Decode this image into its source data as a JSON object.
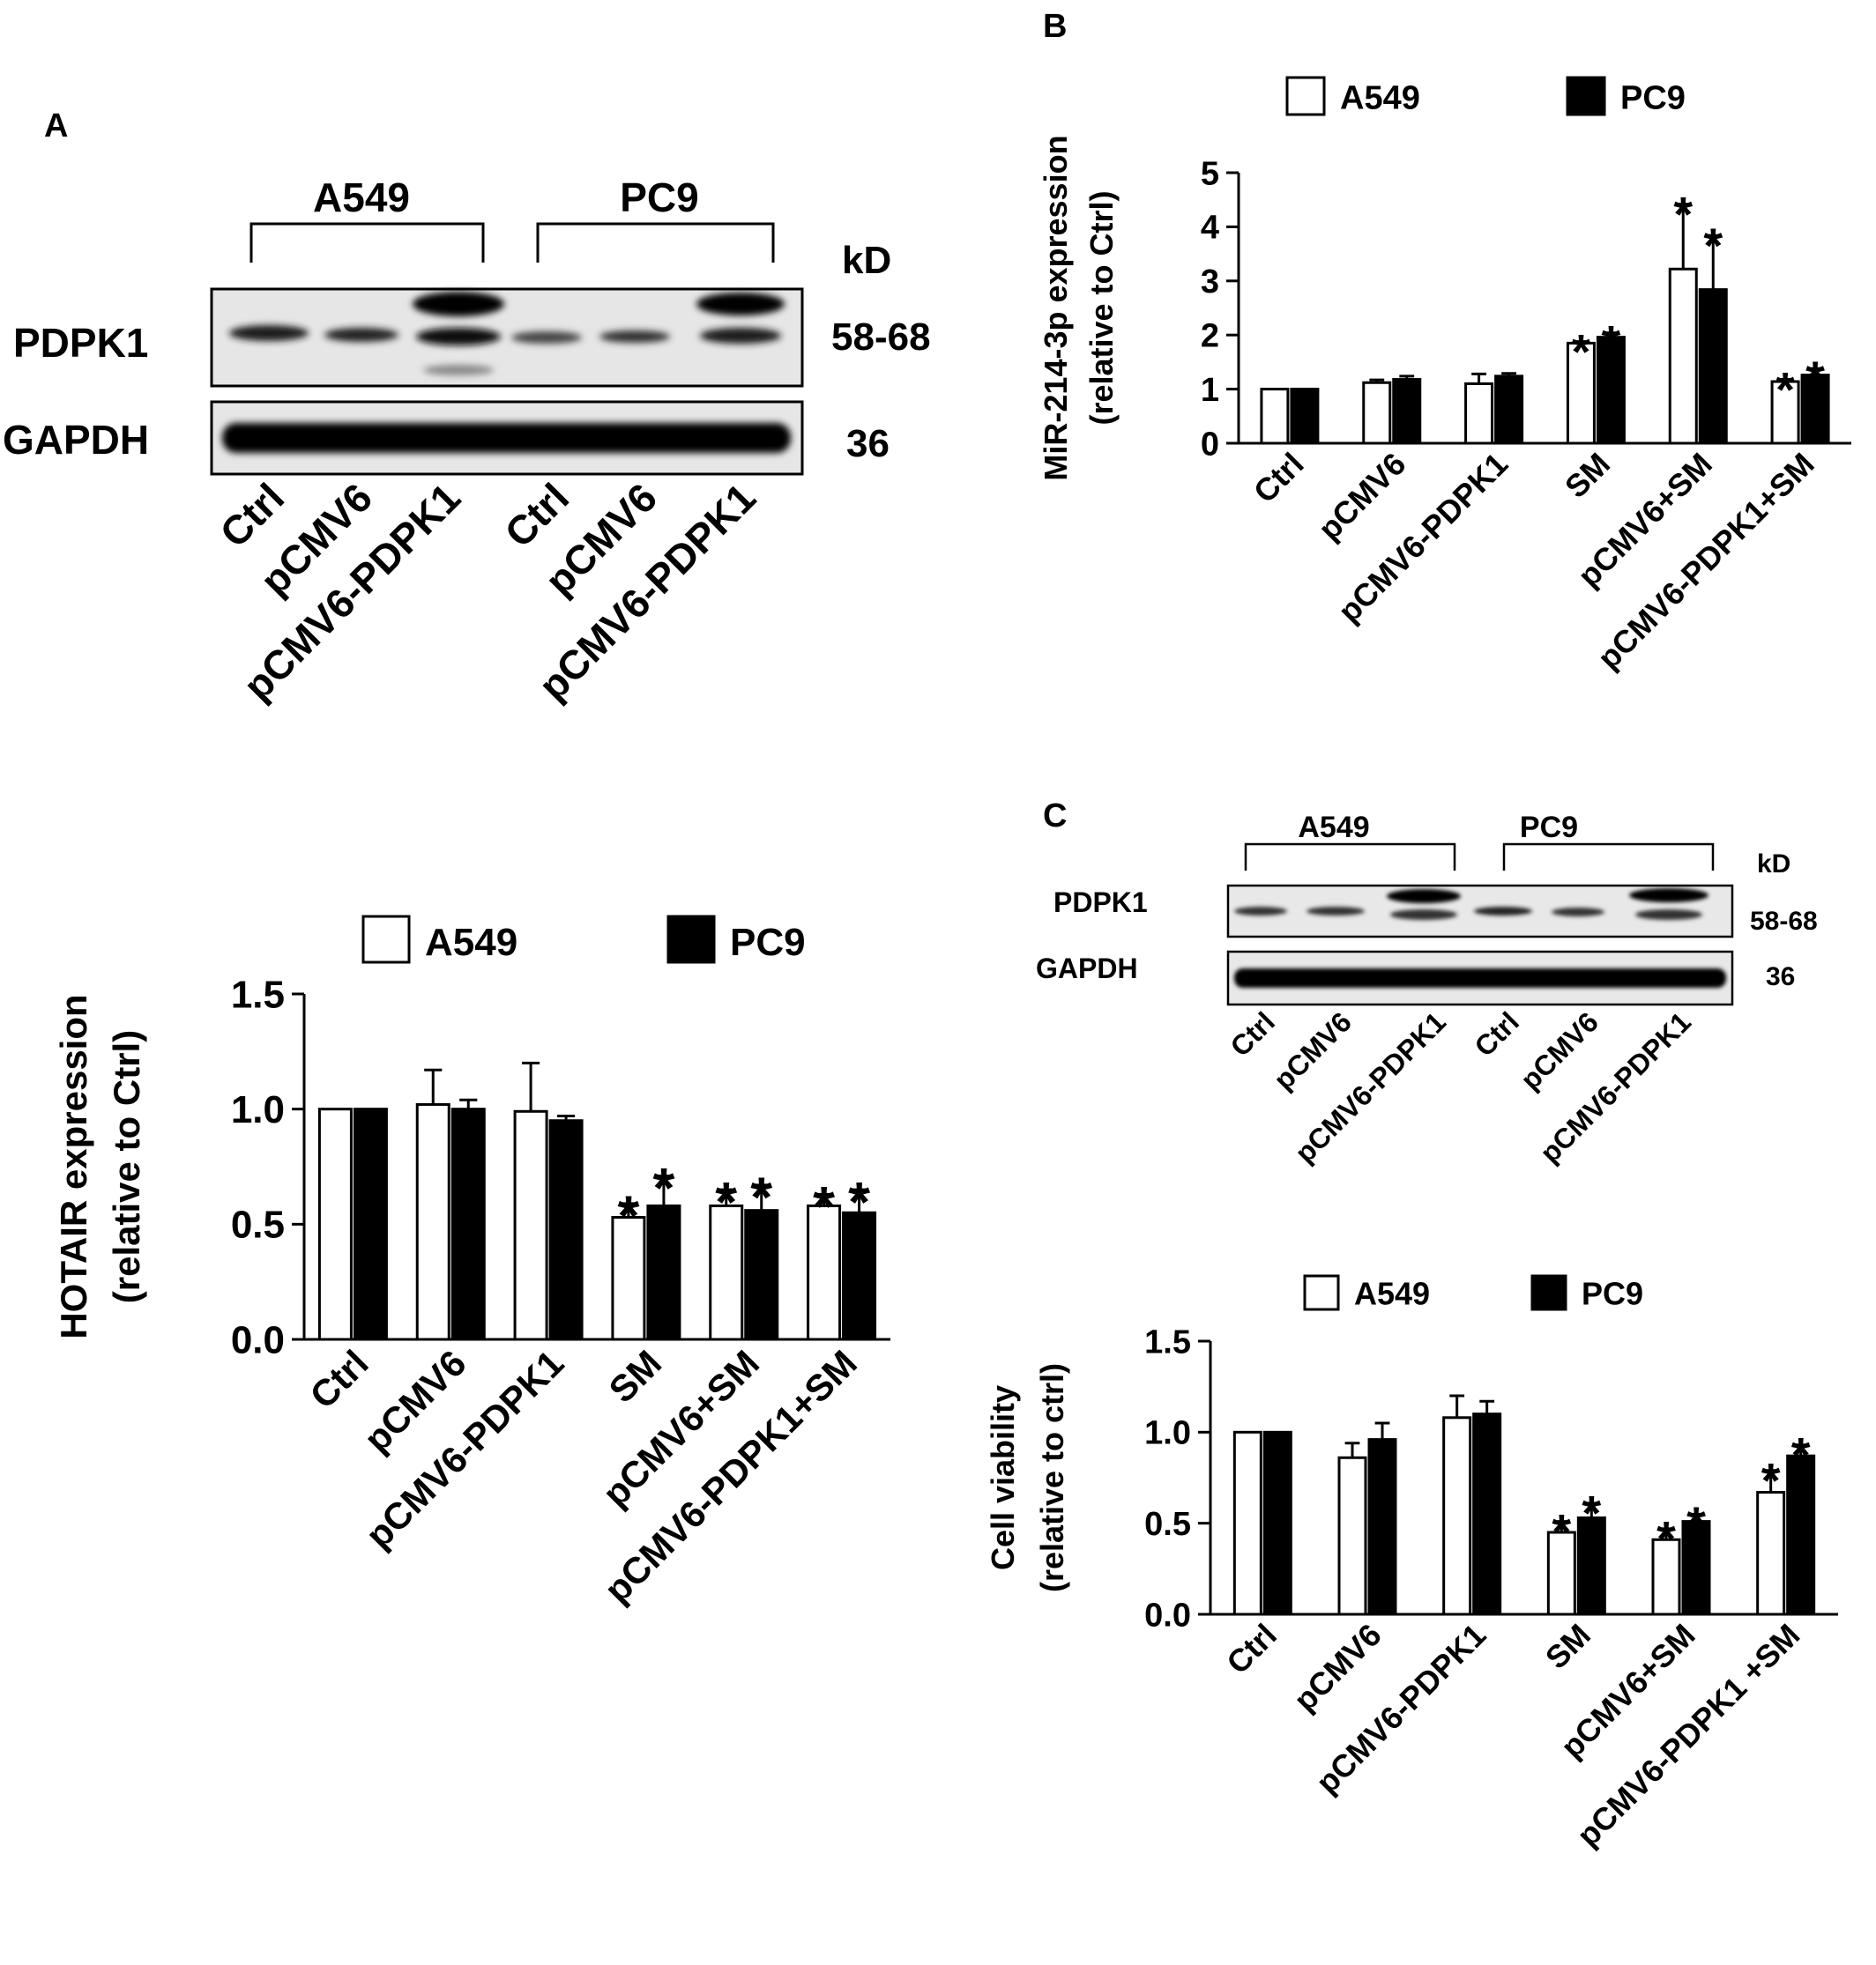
{
  "panels": {
    "a": "A",
    "b": "B",
    "c": "C"
  },
  "blot_a": {
    "groups": [
      "A549",
      "PC9"
    ],
    "unit_header": "kD",
    "proteins": [
      {
        "name": "PDPK1",
        "kd": "58-68"
      },
      {
        "name": "GAPDH",
        "kd": "36"
      }
    ],
    "lanes": [
      "Ctrl",
      "pCMV6",
      "pCMV6-PDPK1",
      "Ctrl",
      "pCMV6",
      "pCMV6-PDPK1"
    ]
  },
  "blot_c": {
    "groups": [
      "A549",
      "PC9"
    ],
    "unit_header": "kD",
    "proteins": [
      {
        "name": "PDPK1",
        "kd": "58-68"
      },
      {
        "name": "GAPDH",
        "kd": "36"
      }
    ],
    "lanes": [
      "Ctrl",
      "pCMV6",
      "pCMV6-PDPK1",
      "Ctrl",
      "pCMV6",
      "pCMV6-PDPK1"
    ]
  },
  "colors": {
    "A549": "#ffffff",
    "PC9": "#000000"
  },
  "chart_data": [
    {
      "id": "hotair",
      "type": "bar",
      "ylabel": [
        "HOTAIR expression",
        "(relative to Ctrl)"
      ],
      "ylim": [
        0,
        1.5
      ],
      "yticks": [
        "0.0",
        "0.5",
        "1.0",
        "1.5"
      ],
      "categories": [
        "Ctrl",
        "pCMV6",
        "pCMV6-PDPK1",
        "SM",
        "pCMV6+SM",
        "pCMV6-PDPK1+SM"
      ],
      "legend_position": "top",
      "grid": false,
      "series": [
        {
          "name": "A549",
          "values": [
            1.0,
            1.02,
            0.99,
            0.53,
            0.58,
            0.58
          ],
          "errors": [
            0,
            0.15,
            0.21,
            0.06,
            0.07,
            0.05
          ],
          "stars": [
            "",
            "",
            "",
            "*",
            "*",
            "*"
          ]
        },
        {
          "name": "PC9",
          "values": [
            1.0,
            1.0,
            0.95,
            0.58,
            0.56,
            0.55
          ],
          "errors": [
            0,
            0.04,
            0.02,
            0.13,
            0.11,
            0.1
          ],
          "stars": [
            "",
            "",
            "",
            "*",
            "*",
            "*"
          ]
        }
      ]
    },
    {
      "id": "mir214",
      "type": "bar",
      "ylabel": [
        "MiR-214-3p expression",
        "(relative to Ctrl)"
      ],
      "ylim": [
        0,
        5
      ],
      "yticks": [
        "0",
        "1",
        "2",
        "3",
        "4",
        "5"
      ],
      "categories": [
        "Ctrl",
        "pCMV6",
        "pCMV6-PDPK1",
        "SM",
        "pCMV6+SM",
        "pCMV6-PDPK1+SM"
      ],
      "legend_position": "top",
      "grid": false,
      "series": [
        {
          "name": "A549",
          "values": [
            1.0,
            1.12,
            1.1,
            1.85,
            3.22,
            1.14
          ],
          "errors": [
            0,
            0.05,
            0.18,
            0.03,
            1.2,
            0.04
          ],
          "stars": [
            "",
            "",
            "",
            "*",
            "*",
            "*"
          ]
        },
        {
          "name": "PC9",
          "values": [
            1.0,
            1.18,
            1.24,
            1.96,
            2.84,
            1.26
          ],
          "errors": [
            0,
            0.06,
            0.05,
            0.08,
            1.0,
            0.12
          ],
          "stars": [
            "",
            "",
            "",
            "*",
            "*",
            "*"
          ]
        }
      ]
    },
    {
      "id": "viability",
      "type": "bar",
      "ylabel": [
        "Cell viability",
        "(relative to ctrl)"
      ],
      "ylim": [
        0,
        1.5
      ],
      "yticks": [
        "0.0",
        "0.5",
        "1.0",
        "1.5"
      ],
      "categories": [
        "Ctrl",
        "pCMV6",
        "pCMV6-PDPK1",
        "SM",
        "pCMV6+SM",
        "pCMV6-PDPK1 +SM"
      ],
      "legend_position": "top",
      "grid": false,
      "series": [
        {
          "name": "A549",
          "values": [
            1.0,
            0.86,
            1.08,
            0.45,
            0.41,
            0.67
          ],
          "errors": [
            0,
            0.08,
            0.12,
            0.06,
            0.06,
            0.12
          ],
          "stars": [
            "",
            "",
            "",
            "*",
            "*",
            "*"
          ]
        },
        {
          "name": "PC9",
          "values": [
            1.0,
            0.96,
            1.1,
            0.53,
            0.51,
            0.87
          ],
          "errors": [
            0,
            0.09,
            0.07,
            0.08,
            0.04,
            0.06
          ],
          "stars": [
            "",
            "",
            "",
            "*",
            "*",
            "*"
          ]
        }
      ]
    }
  ]
}
